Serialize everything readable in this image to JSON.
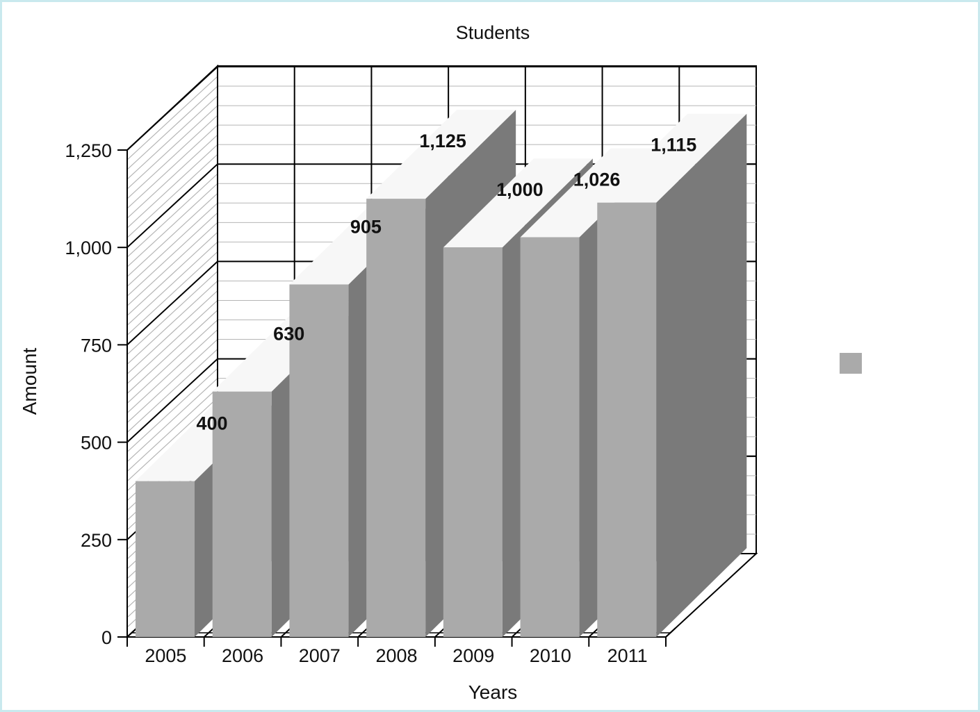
{
  "chart_data": {
    "type": "bar",
    "style": "3d",
    "title": "Students",
    "xlabel": "Years",
    "ylabel": "Amount",
    "categories": [
      "2005",
      "2006",
      "2007",
      "2008",
      "2009",
      "2010",
      "2011"
    ],
    "series": [
      {
        "values": [
          400,
          630,
          905,
          1125,
          1000,
          1026,
          1115
        ],
        "value_labels": [
          "400",
          "630",
          "905",
          "1,125",
          "1,000",
          "1,026",
          "1,115"
        ]
      }
    ],
    "ylim": [
      0,
      1250
    ],
    "yticks": [
      0,
      250,
      500,
      750,
      1000,
      1250
    ],
    "ytick_labels": [
      "0",
      "250",
      "500",
      "750",
      "1,000",
      "1,250"
    ],
    "grid": true,
    "legend": "right",
    "colors": {
      "bar_front": "#aaaaaa",
      "bar_side": "#7a7a7a",
      "bar_top": "#f7f7f7",
      "legend_swatch": "#aaaaaa",
      "frame_border": "#c9e9ee"
    }
  }
}
